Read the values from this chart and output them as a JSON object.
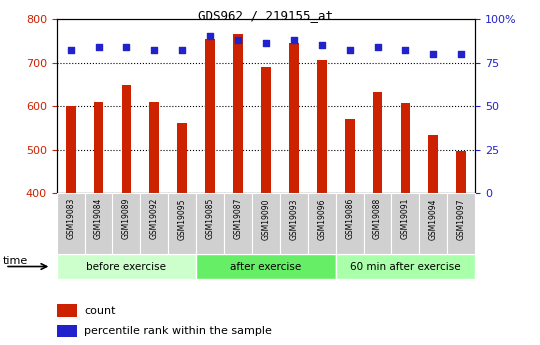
{
  "title": "GDS962 / 219155_at",
  "samples": [
    "GSM19083",
    "GSM19084",
    "GSM19089",
    "GSM19092",
    "GSM19095",
    "GSM19085",
    "GSM19087",
    "GSM19090",
    "GSM19093",
    "GSM19096",
    "GSM19086",
    "GSM19088",
    "GSM19091",
    "GSM19094",
    "GSM19097"
  ],
  "counts": [
    600,
    610,
    648,
    610,
    562,
    755,
    765,
    690,
    745,
    705,
    570,
    633,
    607,
    533,
    497
  ],
  "percentile_ranks": [
    82,
    84,
    84,
    82,
    82,
    90,
    88,
    86,
    88,
    85,
    82,
    84,
    82,
    80,
    80
  ],
  "groups": [
    {
      "label": "before exercise",
      "start": 0,
      "end": 5,
      "color": "#ccffcc"
    },
    {
      "label": "after exercise",
      "start": 5,
      "end": 10,
      "color": "#66ee66"
    },
    {
      "label": "60 min after exercise",
      "start": 10,
      "end": 15,
      "color": "#aaffaa"
    }
  ],
  "ylim_left": [
    400,
    800
  ],
  "ylim_right": [
    0,
    100
  ],
  "yticks_left": [
    400,
    500,
    600,
    700,
    800
  ],
  "yticks_right": [
    0,
    25,
    50,
    75,
    100
  ],
  "bar_color": "#cc2200",
  "dot_color": "#2222cc",
  "bar_width": 0.35,
  "grid_dotted_at": [
    500,
    600,
    700
  ],
  "bg_color": "#ffffff",
  "tick_label_color_left": "#cc2200",
  "tick_label_color_right": "#2222cc",
  "xlabel_time": "time",
  "legend_count": "count",
  "legend_percentile": "percentile rank within the sample",
  "tick_box_color": "#d0d0d0"
}
